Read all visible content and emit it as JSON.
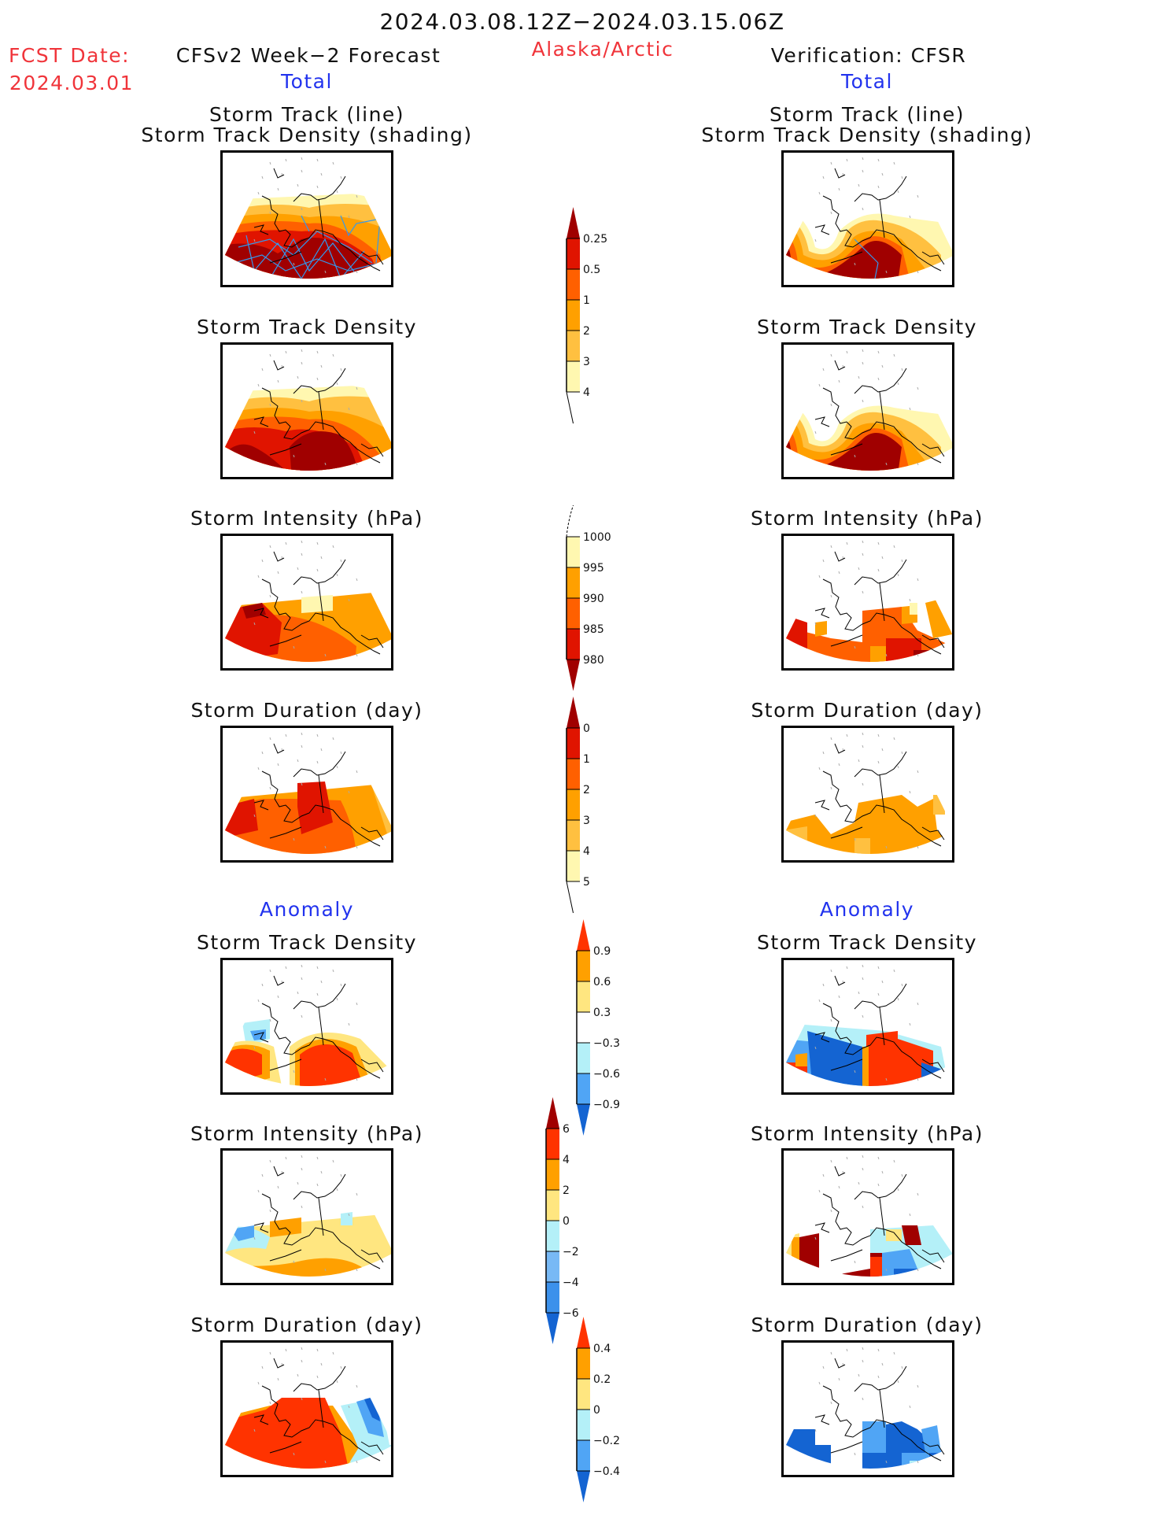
{
  "header": {
    "period": "2024.03.08.12Z−2024.03.15.06Z",
    "region": "Alaska/Arctic",
    "fcst_label": "FCST Date:",
    "fcst_date": "2024.03.01",
    "left_title": "CFSv2 Week−2 Forecast",
    "right_title": "Verification: CFSR",
    "left_section": "Total",
    "right_section": "Total",
    "left_anomaly": "Anomaly",
    "right_anomaly": "Anomaly"
  },
  "panel_titles": {
    "track_line": "Storm Track (line)",
    "track_shading": "Storm Track Density (shading)",
    "density": "Storm Track Density",
    "intensity": "Storm Intensity (hPa)",
    "duration": "Storm Duration (day)"
  },
  "colors": {
    "title_red": "#f0343a",
    "section_blue": "#2233ee",
    "track_line": "#3399ee"
  },
  "chart_data": [
    {
      "type": "heatmap",
      "title": "Storm Track Density (Total)",
      "colorbar": {
        "levels": [
          "0.25",
          "0.5",
          "1",
          "2",
          "3",
          "4"
        ],
        "colors": [
          "#fff7b0",
          "#ffc040",
          "#ffa000",
          "#ff6000",
          "#e01400",
          "#a00000"
        ],
        "extend": "both"
      },
      "panels": [
        "forecast-track",
        "verification-track",
        "forecast-density",
        "verification-density"
      ]
    },
    {
      "type": "heatmap",
      "title": "Storm Intensity (hPa) (Total)",
      "colorbar": {
        "levels": [
          "1000",
          "995",
          "990",
          "985",
          "980"
        ],
        "colors": [
          "#fff7b0",
          "#ffa000",
          "#ff6000",
          "#e01400",
          "#a00000"
        ],
        "extend": "min"
      },
      "panels": [
        "forecast-intensity",
        "verification-intensity"
      ]
    },
    {
      "type": "heatmap",
      "title": "Storm Duration (day) (Total)",
      "colorbar": {
        "levels": [
          "0",
          "1",
          "2",
          "3",
          "4",
          "5"
        ],
        "colors": [
          "#fff7b0",
          "#ffc040",
          "#ffa000",
          "#ff6000",
          "#e01400",
          "#a00000"
        ],
        "extend": "both"
      },
      "panels": [
        "forecast-duration",
        "verification-duration"
      ]
    },
    {
      "type": "heatmap",
      "title": "Storm Track Density (Anomaly)",
      "colorbar": {
        "levels": [
          "0.9",
          "0.6",
          "0.3",
          "−0.3",
          "−0.6",
          "−0.9"
        ],
        "colors": [
          "#ff3300",
          "#ffa000",
          "#ffe680",
          "#ffffff",
          "#b4f0f8",
          "#50a5f5",
          "#1464d2"
        ],
        "extend": "both"
      },
      "panels": [
        "forecast-density-anomaly",
        "verification-density-anomaly"
      ]
    },
    {
      "type": "heatmap",
      "title": "Storm Intensity (hPa) (Anomaly)",
      "colorbar": {
        "levels": [
          "6",
          "4",
          "2",
          "0",
          "−2",
          "−4",
          "−6"
        ],
        "colors": [
          "#a00000",
          "#ff3300",
          "#ffa000",
          "#ffe680",
          "#b4f0f8",
          "#78b9f5",
          "#3c91eb",
          "#1464d2"
        ],
        "extend": "both"
      },
      "panels": [
        "forecast-intensity-anomaly",
        "verification-intensity-anomaly"
      ]
    },
    {
      "type": "heatmap",
      "title": "Storm Duration (day) (Anomaly)",
      "colorbar": {
        "levels": [
          "0.4",
          "0.2",
          "0",
          "−0.2",
          "−0.4"
        ],
        "colors": [
          "#ff3300",
          "#ffa000",
          "#ffe680",
          "#b4f0f8",
          "#50a5f5",
          "#1464d2"
        ],
        "extend": "both"
      },
      "panels": [
        "forecast-duration-anomaly",
        "verification-duration-anomaly"
      ]
    }
  ]
}
